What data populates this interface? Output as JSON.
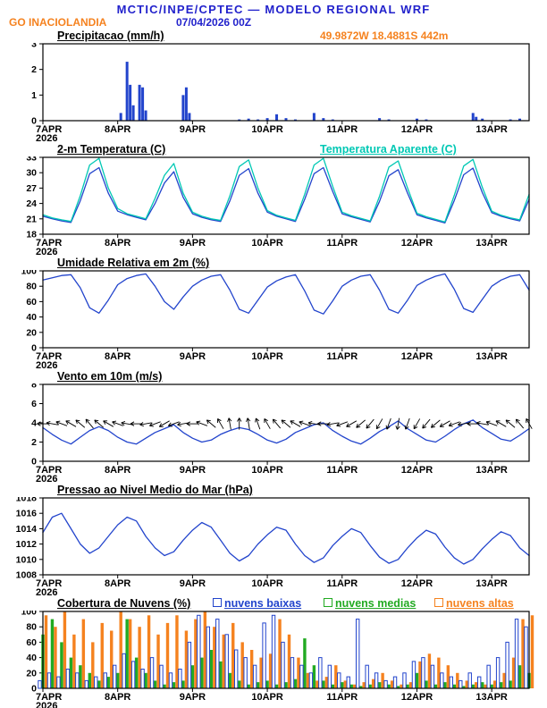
{
  "header": {
    "title": "MCTIC/INPE/CPTEC — MODELO REGIONAL WRF",
    "station": "GO INACIOLANDIA",
    "run": "07/04/2026 00Z",
    "location": "49.9872W 18.4881S 442m"
  },
  "colors": {
    "header_blue": "#2222cc",
    "orange": "#f5821f",
    "line_blue": "#2244cc",
    "cyan": "#00c8b4",
    "green": "#22aa22",
    "black": "#000000"
  },
  "x_axis": {
    "day_labels": [
      "7APR",
      "8APR",
      "9APR",
      "10APR",
      "11APR",
      "12APR",
      "13APR"
    ],
    "year_label": "2026",
    "hours": 156,
    "tick_interval_hours": 24,
    "time_step_hours": 3
  },
  "chart_data": [
    {
      "type": "bar",
      "title": "Precipitacao (mm/h)",
      "ylim": [
        0,
        3
      ],
      "yticks": [
        0,
        1,
        2,
        3
      ],
      "bar_color": "#2244cc",
      "bars": [
        [
          25,
          0.3
        ],
        [
          27,
          2.3
        ],
        [
          28,
          1.4
        ],
        [
          29,
          0.6
        ],
        [
          31,
          1.4
        ],
        [
          32,
          1.3
        ],
        [
          33,
          0.4
        ],
        [
          45,
          1.0
        ],
        [
          46,
          1.3
        ],
        [
          47,
          0.3
        ],
        [
          63,
          0.05
        ],
        [
          66,
          0.08
        ],
        [
          69,
          0.05
        ],
        [
          72,
          0.1
        ],
        [
          75,
          0.25
        ],
        [
          78,
          0.1
        ],
        [
          81,
          0.05
        ],
        [
          87,
          0.3
        ],
        [
          90,
          0.1
        ],
        [
          93,
          0.05
        ],
        [
          108,
          0.1
        ],
        [
          111,
          0.05
        ],
        [
          120,
          0.08
        ],
        [
          123,
          0.05
        ],
        [
          138,
          0.3
        ],
        [
          139,
          0.15
        ],
        [
          141,
          0.08
        ],
        [
          150,
          0.05
        ],
        [
          153,
          0.08
        ]
      ]
    },
    {
      "type": "line",
      "title": "2-m Temperatura (C)",
      "legend_right": "Temperatura Aparente (C)",
      "ylim": [
        18,
        33
      ],
      "yticks": [
        18,
        21,
        24,
        27,
        30,
        33
      ],
      "series": [
        {
          "name": "2-m Temperatura (C)",
          "color": "#2244cc",
          "values": [
            21.5,
            21.0,
            20.6,
            20.3,
            24.5,
            29.8,
            31.0,
            26.0,
            22.5,
            21.8,
            21.3,
            20.8,
            24.0,
            28.0,
            30.2,
            25.2,
            22.0,
            21.3,
            20.8,
            20.5,
            24.5,
            29.5,
            30.8,
            26.0,
            22.3,
            21.5,
            21.0,
            20.5,
            24.8,
            29.8,
            31.0,
            26.3,
            22.0,
            21.4,
            20.9,
            20.4,
            24.4,
            29.4,
            30.6,
            26.0,
            21.8,
            21.2,
            20.7,
            20.2,
            24.6,
            29.6,
            30.9,
            26.1,
            22.2,
            21.5,
            21.0,
            20.6,
            24.8
          ]
        },
        {
          "name": "Temperatura Aparente (C)",
          "color": "#00c8b4",
          "values": [
            21.8,
            21.2,
            20.8,
            20.5,
            25.5,
            31.5,
            32.8,
            27.0,
            23.0,
            22.0,
            21.5,
            21.0,
            25.0,
            29.5,
            31.8,
            26.0,
            22.3,
            21.5,
            21.0,
            20.7,
            25.5,
            31.2,
            32.5,
            27.0,
            22.6,
            21.7,
            21.2,
            20.7,
            25.8,
            31.5,
            32.8,
            27.3,
            22.3,
            21.6,
            21.1,
            20.6,
            25.4,
            31.1,
            32.3,
            27.0,
            22.1,
            21.4,
            20.9,
            20.4,
            25.6,
            31.3,
            32.6,
            27.1,
            22.5,
            21.7,
            21.2,
            20.8,
            25.8
          ]
        }
      ]
    },
    {
      "type": "line",
      "title": "Umidade Relativa em 2m (%)",
      "ylim": [
        0,
        100
      ],
      "yticks": [
        0,
        20,
        40,
        60,
        80,
        100
      ],
      "series": [
        {
          "name": "Umidade Relativa em 2m",
          "color": "#2244cc",
          "values": [
            88,
            91,
            94,
            95,
            78,
            52,
            45,
            62,
            82,
            90,
            94,
            96,
            80,
            60,
            50,
            66,
            80,
            88,
            93,
            95,
            75,
            50,
            45,
            62,
            79,
            87,
            92,
            95,
            74,
            49,
            44,
            61,
            80,
            88,
            93,
            95,
            75,
            50,
            45,
            62,
            81,
            88,
            93,
            96,
            76,
            51,
            46,
            63,
            80,
            88,
            93,
            95,
            75
          ]
        }
      ]
    },
    {
      "type": "wind",
      "title": "Vento em 10m (m/s)",
      "ylim": [
        0,
        8
      ],
      "yticks": [
        0,
        2,
        4,
        6,
        8
      ],
      "series": [
        {
          "name": "Velocidade do vento em 10m",
          "color": "#2244cc",
          "values": [
            3.5,
            2.8,
            2.2,
            1.8,
            2.5,
            3.2,
            3.6,
            3.2,
            2.5,
            2.0,
            1.8,
            2.4,
            3.0,
            3.4,
            3.8,
            3.0,
            2.4,
            2.0,
            2.2,
            2.8,
            3.2,
            3.5,
            3.3,
            2.8,
            2.2,
            1.9,
            2.3,
            3.0,
            3.4,
            3.8,
            4.0,
            3.2,
            2.6,
            2.1,
            1.8,
            2.4,
            3.1,
            3.6,
            4.2,
            3.4,
            2.8,
            2.2,
            2.0,
            2.6,
            3.3,
            3.9,
            4.3,
            3.5,
            2.9,
            2.3,
            2.1,
            2.7,
            3.4
          ]
        }
      ],
      "barbs": {
        "color": "#000000",
        "y_value": 3.9,
        "angles_deg": [
          180,
          190,
          200,
          210,
          220,
          230,
          220,
          210,
          200,
          190,
          180,
          170,
          160,
          150,
          160,
          170,
          180,
          200,
          220,
          240,
          260,
          270,
          260,
          250,
          240,
          230,
          220,
          210,
          200,
          190,
          180,
          170,
          160,
          150,
          140,
          130,
          120,
          110,
          100,
          110,
          120,
          130,
          140,
          150,
          160,
          170,
          180,
          190,
          200,
          210,
          220,
          230,
          240
        ]
      }
    },
    {
      "type": "line",
      "title": "Pressao ao Nivel Medio do Mar (hPa)",
      "ylim": [
        1008,
        1018
      ],
      "yticks": [
        1008,
        1010,
        1012,
        1014,
        1016,
        1018
      ],
      "series": [
        {
          "name": "Pressao ao nivel medio do mar",
          "color": "#2244cc",
          "values": [
            1013.5,
            1015.5,
            1016.0,
            1014.0,
            1012.0,
            1010.8,
            1011.5,
            1013.0,
            1014.5,
            1015.5,
            1015.0,
            1013.0,
            1011.5,
            1010.5,
            1011.0,
            1012.5,
            1013.8,
            1014.8,
            1014.2,
            1012.5,
            1010.8,
            1009.8,
            1010.5,
            1012.0,
            1013.2,
            1014.2,
            1013.8,
            1012.0,
            1010.5,
            1009.6,
            1010.2,
            1011.8,
            1013.0,
            1014.0,
            1013.5,
            1011.8,
            1010.3,
            1009.5,
            1010.0,
            1011.5,
            1012.8,
            1013.8,
            1013.3,
            1011.6,
            1010.2,
            1009.4,
            1010.0,
            1011.4,
            1012.6,
            1013.6,
            1013.1,
            1011.5,
            1010.5
          ]
        }
      ]
    },
    {
      "type": "bar-multi",
      "title": "Cobertura de Nuvens (%)",
      "ylim": [
        0,
        100
      ],
      "yticks": [
        0,
        20,
        40,
        60,
        80,
        100
      ],
      "series": [
        {
          "name": "nuvens baixas",
          "color": "#2244cc",
          "style": "hollow",
          "values": [
            10,
            20,
            15,
            25,
            20,
            10,
            15,
            20,
            30,
            45,
            35,
            25,
            40,
            30,
            20,
            25,
            60,
            95,
            80,
            90,
            70,
            50,
            40,
            30,
            85,
            95,
            60,
            40,
            30,
            20,
            40,
            30,
            20,
            15,
            90,
            30,
            20,
            10,
            15,
            20,
            35,
            40,
            30,
            20,
            15,
            10,
            20,
            15,
            30,
            40,
            60,
            90,
            80
          ]
        },
        {
          "name": "nuvens medias",
          "color": "#22aa22",
          "style": "solid",
          "values": [
            70,
            90,
            60,
            40,
            30,
            20,
            10,
            15,
            20,
            90,
            40,
            20,
            10,
            5,
            8,
            10,
            30,
            40,
            50,
            35,
            20,
            10,
            5,
            8,
            10,
            5,
            8,
            12,
            65,
            30,
            10,
            5,
            8,
            5,
            3,
            5,
            8,
            5,
            3,
            5,
            20,
            10,
            5,
            8,
            5,
            3,
            5,
            8,
            5,
            8,
            10,
            30,
            20
          ]
        },
        {
          "name": "nuvens altas",
          "color": "#f5821f",
          "style": "solid",
          "values": [
            95,
            80,
            100,
            70,
            90,
            60,
            85,
            75,
            100,
            90,
            80,
            95,
            70,
            85,
            95,
            75,
            90,
            100,
            80,
            70,
            85,
            60,
            50,
            40,
            45,
            90,
            70,
            40,
            20,
            10,
            15,
            30,
            10,
            5,
            8,
            12,
            20,
            10,
            5,
            8,
            35,
            45,
            40,
            30,
            20,
            10,
            8,
            5,
            10,
            20,
            40,
            90,
            95
          ]
        }
      ]
    }
  ]
}
